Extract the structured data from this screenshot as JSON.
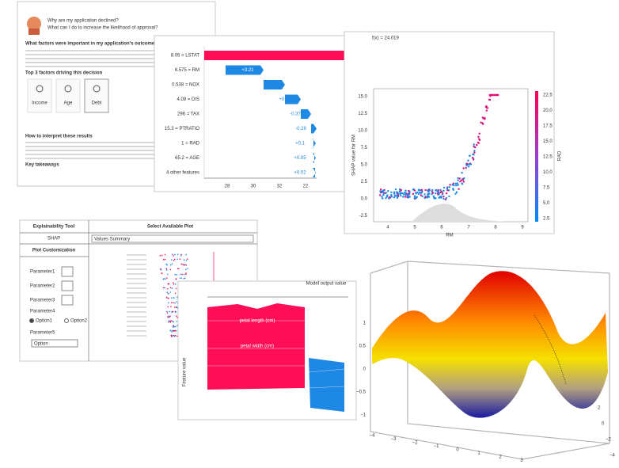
{
  "document": {
    "title": "Why are my application declined?",
    "subtitle": "What can I do to increase the likelihood of approval?",
    "heading1": "What factors were important in my application's outcome?",
    "heading2": "Top 3 factors driving this decision",
    "cards": [
      "Income",
      "Age",
      "Debt"
    ],
    "heading3": "How to interpret these results",
    "heading4": "Key takeaways"
  },
  "waterfall": {
    "features": [
      "8.05 = LSTAT",
      "6.575 = RM",
      "0.538 = NOX",
      "4.09 = DIS",
      "296 = TAX",
      "15.3 = PTRATIO",
      "1 = RAD",
      "65.2 = AGE",
      "4 other features"
    ],
    "value_labels": [
      "+6.11",
      "+3.21",
      "+0.72",
      "+0.48",
      "-0.37",
      "-0.28",
      "+0.1",
      "+0.05",
      "+0.02"
    ],
    "xticks": [
      "28",
      "30",
      "32",
      "22"
    ]
  },
  "scatter": {
    "fx": "f(x) = 24.019",
    "ylabel": "SHAP value for RM",
    "xlabel": "RM",
    "colorbar_label": "RAD",
    "yticks": [
      "15.0",
      "12.5",
      "10.0",
      "7.5",
      "5.0",
      "2.5",
      "0.0",
      "-2.5"
    ],
    "xticks": [
      "4",
      "5",
      "6",
      "7",
      "8",
      "9"
    ],
    "colorbar_ticks": [
      "22.5",
      "20.0",
      "17.5",
      "15.0",
      "12.5",
      "10.0",
      "7.5",
      "5.0",
      "2.5"
    ]
  },
  "tool": {
    "header_left": "Explainability Tool",
    "header_right": "Select Available Plot",
    "method": "SHAP",
    "plot": "Values Summary",
    "customization": "Plot Customization",
    "parameters": [
      "Parameter1",
      "Parameter2",
      "Parameter3"
    ],
    "parameter4": "Parameter4",
    "options": [
      "Option1",
      "Option2"
    ],
    "parameter5": "Parameter5",
    "select": "Option"
  },
  "decision": {
    "title": "Model output value",
    "ylabel": "Feature value",
    "bands": [
      "petal length (cm)",
      "petal width (cm)"
    ]
  },
  "surface": {
    "zticks": [
      "1",
      "0.5",
      "0",
      "−0.5",
      "−1"
    ],
    "xticks": [
      "−4",
      "−3",
      "−2",
      "−1",
      "0",
      "1",
      "2",
      "3"
    ],
    "yticks": [
      "−4",
      "−2",
      "0",
      "2"
    ]
  }
}
